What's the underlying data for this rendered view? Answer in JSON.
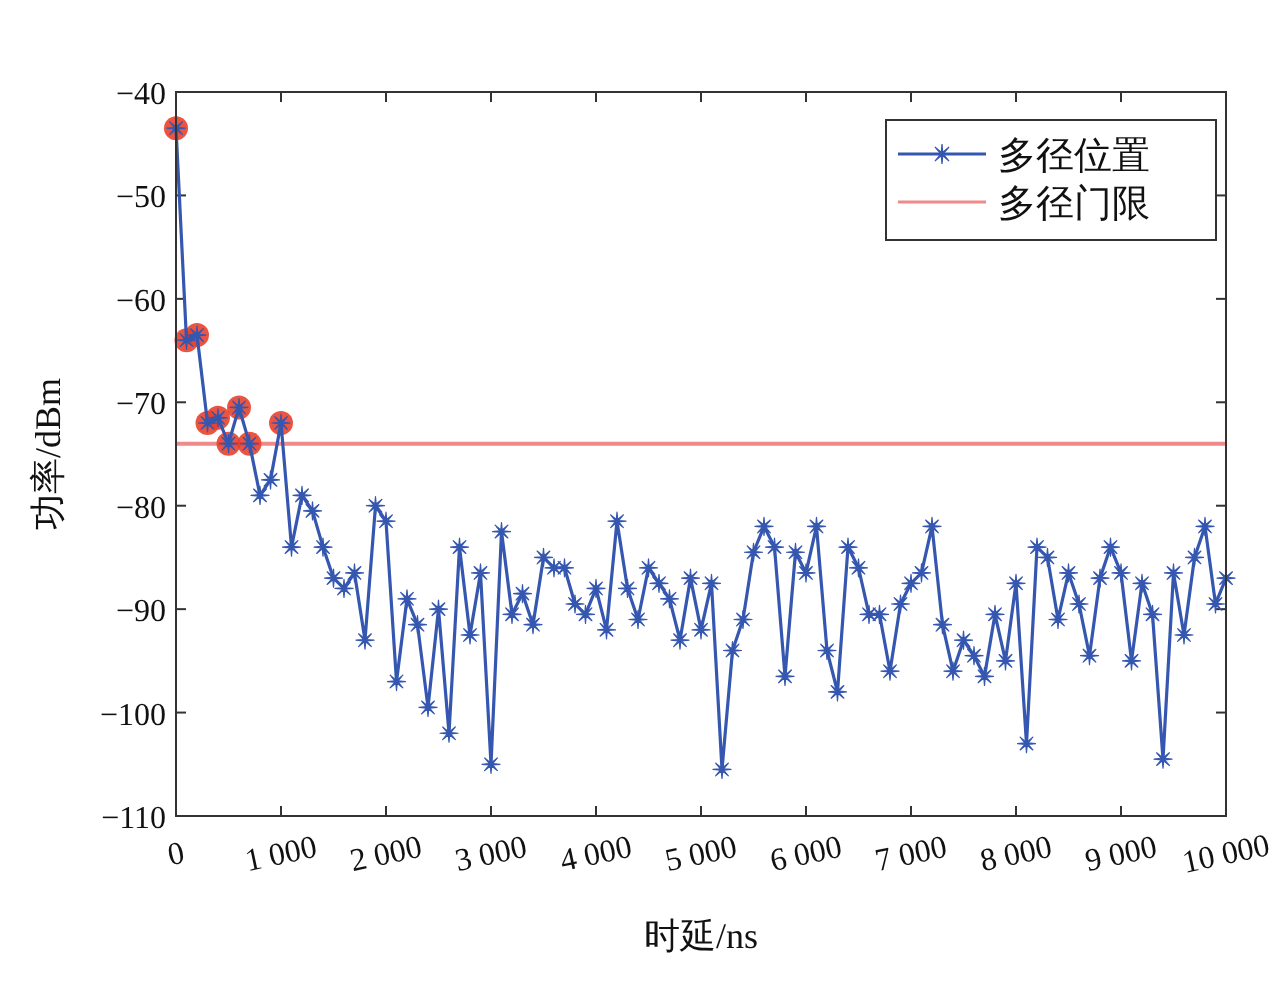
{
  "chart_data": {
    "type": "line",
    "xlabel": "时延/ns",
    "ylabel": "功率/dBm",
    "xlim": [
      0,
      10000
    ],
    "ylim": [
      -110,
      -40
    ],
    "xticks": [
      0,
      {
        "value": 1000,
        "label": "1 000"
      },
      {
        "value": 2000,
        "label": "2 000"
      },
      {
        "value": 3000,
        "label": "3 000"
      },
      {
        "value": 4000,
        "label": "4 000"
      },
      {
        "value": 5000,
        "label": "5 000"
      },
      {
        "value": 6000,
        "label": "6 000"
      },
      {
        "value": 7000,
        "label": "7 000"
      },
      {
        "value": 8000,
        "label": "8 000"
      },
      {
        "value": 9000,
        "label": "9 000"
      },
      {
        "value": 10000,
        "label": "10 000"
      }
    ],
    "yticks": [
      -110,
      -100,
      -90,
      -80,
      -70,
      -60,
      -50,
      -40
    ],
    "grid": false,
    "legend": "top right",
    "ref_lines": [
      {
        "axis": "y",
        "value": -74,
        "label": "多径门限",
        "color": "#f08a8a"
      }
    ],
    "series": [
      {
        "type": "scatter",
        "marker": "circle",
        "color": "#e8412c",
        "x": [
          0,
          100,
          200,
          300,
          400,
          500,
          600,
          700,
          1000
        ],
        "values": [
          -43.5,
          -64,
          -63.5,
          -72,
          -71.5,
          -74,
          -70.5,
          -74,
          -72
        ]
      },
      {
        "name": "多径位置",
        "marker": "cross",
        "color": "#3557b0",
        "x": [
          0,
          100,
          200,
          300,
          400,
          500,
          600,
          700,
          800,
          900,
          1000,
          1100,
          1200,
          1300,
          1400,
          1500,
          1600,
          1700,
          1800,
          1900,
          2000,
          2100,
          2200,
          2300,
          2400,
          2500,
          2600,
          2700,
          2800,
          2900,
          3000,
          3100,
          3200,
          3300,
          3400,
          3500,
          3600,
          3700,
          3800,
          3900,
          4000,
          4100,
          4200,
          4300,
          4400,
          4500,
          4600,
          4700,
          4800,
          4900,
          5000,
          5100,
          5200,
          5300,
          5400,
          5500,
          5600,
          5700,
          5800,
          5900,
          6000,
          6100,
          6200,
          6300,
          6400,
          6500,
          6600,
          6700,
          6800,
          6900,
          7000,
          7100,
          7200,
          7300,
          7400,
          7500,
          7600,
          7700,
          7800,
          7900,
          8000,
          8100,
          8200,
          8300,
          8400,
          8500,
          8600,
          8700,
          8800,
          8900,
          9000,
          9100,
          9200,
          9300,
          9400,
          9500,
          9600,
          9700,
          9800,
          9900,
          10000
        ],
        "values": [
          -43.5,
          -64,
          -63.5,
          -72,
          -71.5,
          -74,
          -70.5,
          -74,
          -79,
          -77.5,
          -72,
          -84,
          -79,
          -80.5,
          -84,
          -87,
          -88,
          -86.5,
          -93,
          -80,
          -81.5,
          -97,
          -89,
          -91.5,
          -99.5,
          -90,
          -102,
          -84,
          -92.5,
          -86.5,
          -105,
          -82.5,
          -90.5,
          -88.5,
          -91.5,
          -85,
          -86,
          -86,
          -89.5,
          -90.5,
          -88,
          -92,
          -81.5,
          -88,
          -91,
          -86,
          -87.5,
          -89,
          -93,
          -87,
          -92,
          -87.5,
          -105.5,
          -94,
          -91,
          -84.5,
          -82,
          -84,
          -96.5,
          -84.5,
          -86.5,
          -82,
          -94,
          -98,
          -84,
          -86,
          -90.5,
          -90.5,
          -96,
          -89.5,
          -87.5,
          -86.5,
          -82,
          -91.5,
          -96,
          -93,
          -94.5,
          -96.5,
          -90.5,
          -95,
          -87.5,
          -103,
          -84,
          -85,
          -91,
          -86.5,
          -89.5,
          -94.5,
          -87,
          -84,
          -86.5,
          -95,
          -87.5,
          -90.5,
          -104.5,
          -86.5,
          -92.5,
          -85,
          -82,
          -89.5,
          -87
        ]
      }
    ]
  }
}
